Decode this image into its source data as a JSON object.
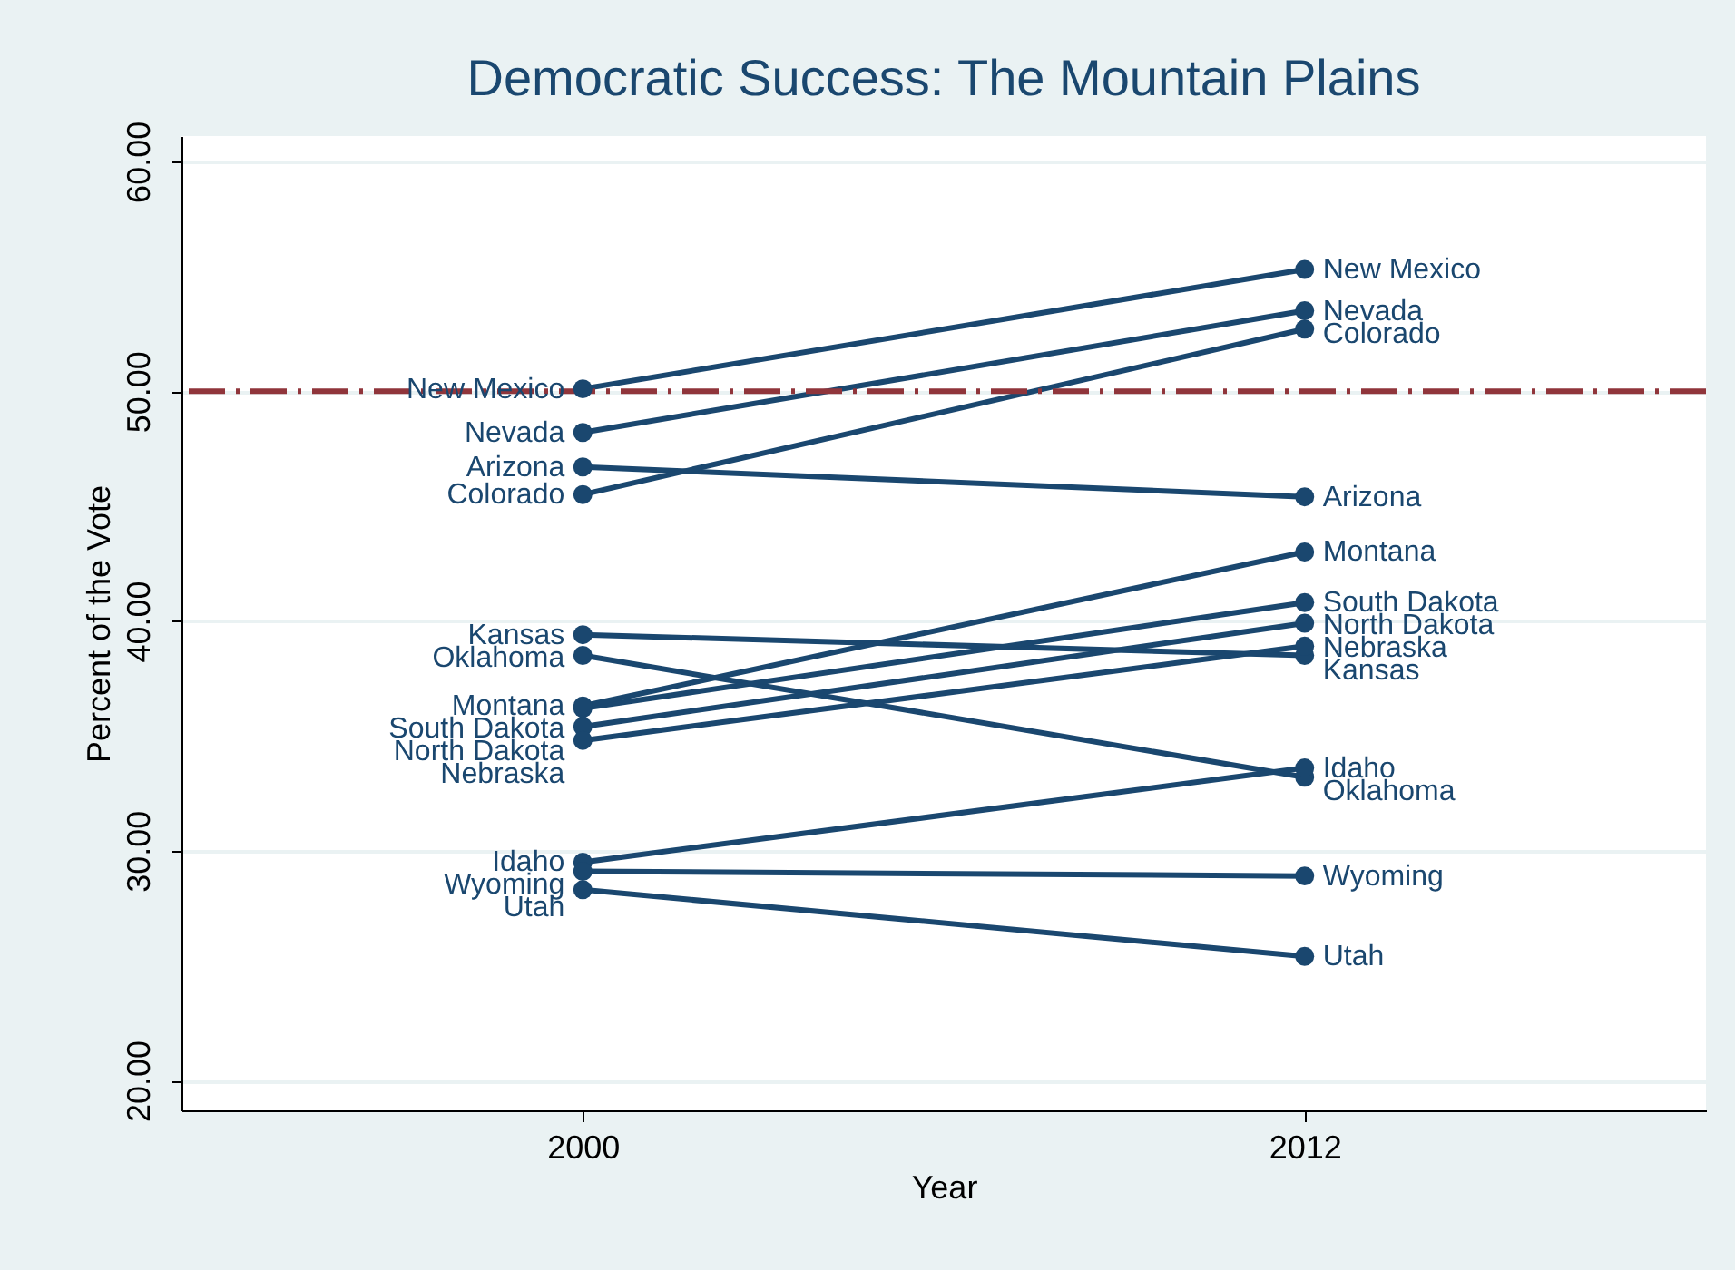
{
  "chart_data": {
    "type": "line",
    "title": "Democratic Success: The Mountain Plains",
    "xlabel": "Year",
    "ylabel": "Percent of the Vote",
    "categories": [
      "2000",
      "2012"
    ],
    "series": [
      {
        "name": "New Mexico",
        "color": "#1a476f",
        "values": [
          50.1,
          55.3
        ]
      },
      {
        "name": "Nevada",
        "color": "#1a476f",
        "values": [
          48.2,
          53.5
        ]
      },
      {
        "name": "Arizona",
        "color": "#1a476f",
        "values": [
          46.7,
          45.4
        ]
      },
      {
        "name": "Colorado",
        "color": "#1a476f",
        "values": [
          45.5,
          52.7
        ]
      },
      {
        "name": "Kansas",
        "color": "#1a476f",
        "values": [
          39.4,
          38.5
        ]
      },
      {
        "name": "Oklahoma",
        "color": "#1a476f",
        "values": [
          38.5,
          33.2
        ]
      },
      {
        "name": "South Dakota",
        "color": "#1a476f",
        "values": [
          36.2,
          40.8
        ]
      },
      {
        "name": "Montana",
        "color": "#1a476f",
        "values": [
          36.3,
          43.0
        ]
      },
      {
        "name": "North Dakota",
        "color": "#1a476f",
        "values": [
          35.4,
          39.9
        ]
      },
      {
        "name": "Nebraska",
        "color": "#1a476f",
        "values": [
          34.8,
          38.9
        ]
      },
      {
        "name": "Idaho",
        "color": "#1a476f",
        "values": [
          29.5,
          33.6
        ]
      },
      {
        "name": "Wyoming",
        "color": "#1a476f",
        "values": [
          29.1,
          28.9
        ]
      },
      {
        "name": "Utah",
        "color": "#1a476f",
        "values": [
          28.3,
          25.4
        ]
      }
    ],
    "ylim": [
      18.7,
      61.1
    ],
    "yticks": [
      {
        "value": 20,
        "label": "20.00"
      },
      {
        "value": 30,
        "label": "30.00"
      },
      {
        "value": 40,
        "label": "40.00"
      },
      {
        "value": 50,
        "label": "50.00"
      },
      {
        "value": 60,
        "label": "60.00"
      }
    ],
    "ref_lines": [
      {
        "axis": "y",
        "value": 50,
        "color": "#90353b",
        "line_style": "dashed"
      }
    ],
    "grid": "y",
    "marker": "circle",
    "line_style": "solid"
  }
}
